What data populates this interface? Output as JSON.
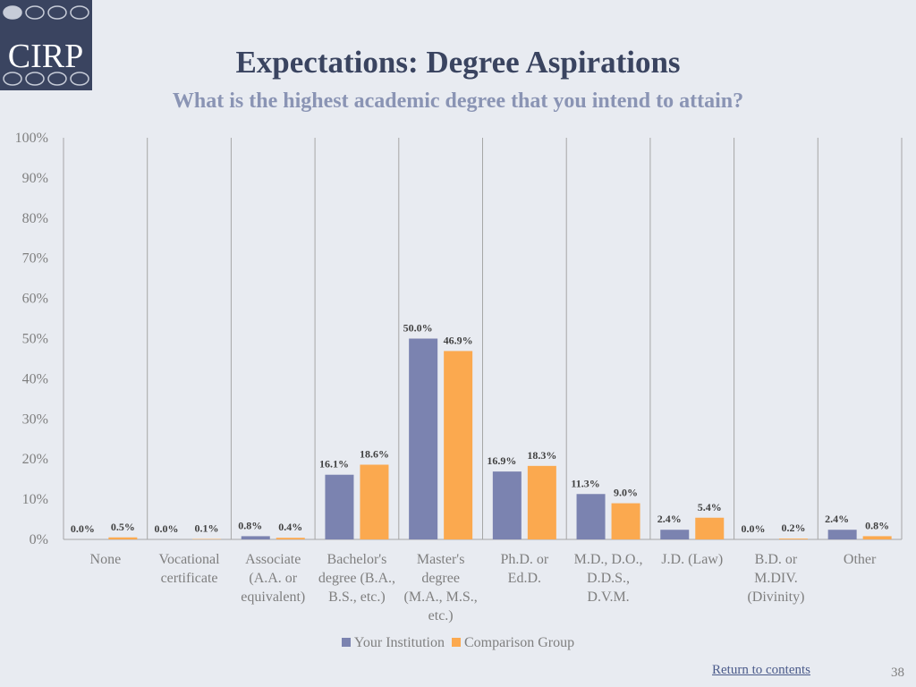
{
  "logo": {
    "text": "CIRP",
    "colors": {
      "bg": "#3a4460",
      "text": "#ffffff",
      "dots": "#c7ccd8"
    }
  },
  "header": {
    "title": "Expectations: Degree Aspirations",
    "subtitle": "What is the highest academic degree that you intend to attain?"
  },
  "chart_data": {
    "type": "bar",
    "categories": [
      [
        "None"
      ],
      [
        "Vocational",
        "certificate"
      ],
      [
        "Associate",
        "(A.A. or",
        "equivalent)"
      ],
      [
        "Bachelor's",
        "degree (B.A.,",
        "B.S., etc.)"
      ],
      [
        "Master's",
        "degree",
        "(M.A., M.S.,",
        "etc.)"
      ],
      [
        "Ph.D. or",
        "Ed.D."
      ],
      [
        "M.D., D.O.,",
        "D.D.S.,",
        "D.V.M."
      ],
      [
        "J.D. (Law)"
      ],
      [
        "B.D. or",
        "M.DIV.",
        "(Divinity)"
      ],
      [
        "Other"
      ]
    ],
    "series": [
      {
        "name": "Your Institution",
        "color": "#7b83b0",
        "values": [
          0.0,
          0.0,
          0.8,
          16.1,
          50.0,
          16.9,
          11.3,
          2.4,
          0.0,
          2.4
        ],
        "labels": [
          "0.0%",
          "0.0%",
          "0.8%",
          "16.1%",
          "50.0%",
          "16.9%",
          "11.3%",
          "2.4%",
          "0.0%",
          "2.4%"
        ]
      },
      {
        "name": "Comparison Group",
        "color": "#fba94f",
        "values": [
          0.5,
          0.1,
          0.4,
          18.6,
          46.9,
          18.3,
          9.0,
          5.4,
          0.2,
          0.8
        ],
        "labels": [
          "0.5%",
          "0.1%",
          "0.4%",
          "18.6%",
          "46.9%",
          "18.3%",
          "9.0%",
          "5.4%",
          "0.2%",
          "0.8%"
        ]
      }
    ],
    "ylim": [
      0,
      100
    ],
    "yticks": [
      0,
      10,
      20,
      30,
      40,
      50,
      60,
      70,
      80,
      90,
      100
    ],
    "ytick_labels": [
      "0%",
      "10%",
      "20%",
      "30%",
      "40%",
      "50%",
      "60%",
      "70%",
      "80%",
      "90%",
      "100%"
    ],
    "grid": "vertical separators between categories",
    "legend": "bottom-center"
  },
  "footer": {
    "return_link": "Return to contents",
    "page_number": "38"
  }
}
